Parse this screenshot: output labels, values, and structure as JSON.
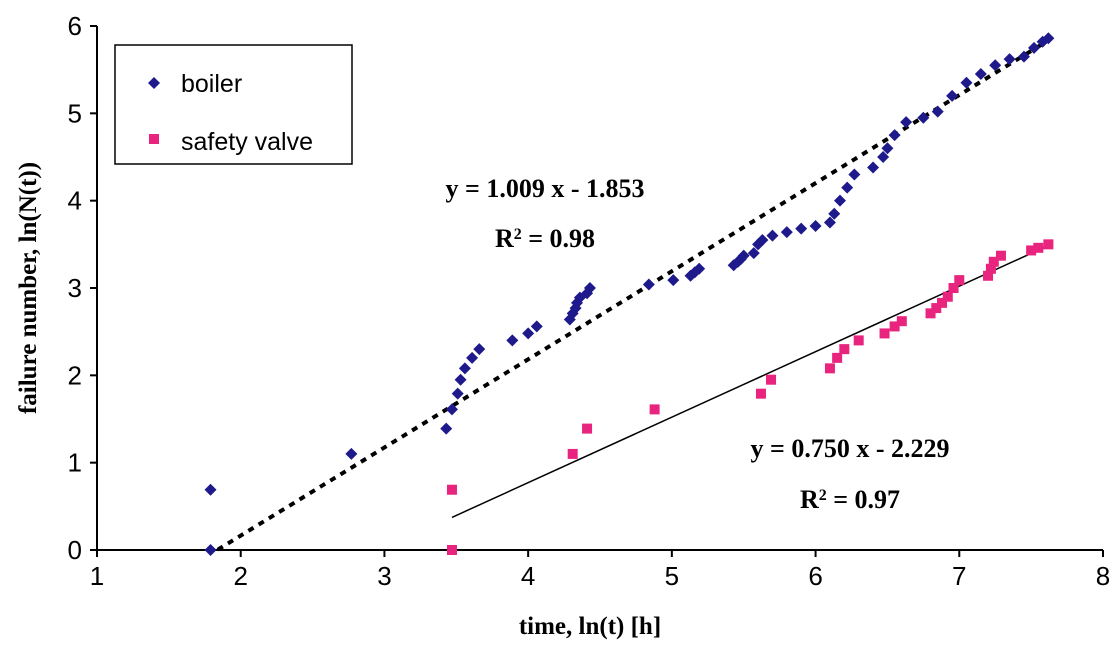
{
  "chart_data": {
    "type": "scatter",
    "xlabel": "time, ln(t) [h]",
    "ylabel": "failure number, ln(N(t))",
    "xlim": [
      1,
      8
    ],
    "ylim": [
      0,
      6
    ],
    "x_ticks": [
      "1",
      "2",
      "3",
      "4",
      "5",
      "6",
      "7",
      "8"
    ],
    "y_ticks": [
      "0",
      "1",
      "2",
      "3",
      "4",
      "5",
      "6"
    ],
    "grid": false,
    "legend_position": "top-left",
    "series": [
      {
        "name": "boiler",
        "marker": "diamond",
        "color": "#1f1a8c",
        "points": [
          [
            1.79,
            0.0
          ],
          [
            1.79,
            0.69
          ],
          [
            2.77,
            1.1
          ],
          [
            3.43,
            1.39
          ],
          [
            3.47,
            1.61
          ],
          [
            3.51,
            1.79
          ],
          [
            3.53,
            1.95
          ],
          [
            3.56,
            2.08
          ],
          [
            3.61,
            2.2
          ],
          [
            3.66,
            2.3
          ],
          [
            3.89,
            2.4
          ],
          [
            4.0,
            2.48
          ],
          [
            4.06,
            2.56
          ],
          [
            4.29,
            2.64
          ],
          [
            4.31,
            2.71
          ],
          [
            4.33,
            2.77
          ],
          [
            4.34,
            2.83
          ],
          [
            4.36,
            2.89
          ],
          [
            4.41,
            2.94
          ],
          [
            4.43,
            3.0
          ],
          [
            4.84,
            3.04
          ],
          [
            5.01,
            3.09
          ],
          [
            5.13,
            3.14
          ],
          [
            5.16,
            3.18
          ],
          [
            5.19,
            3.22
          ],
          [
            5.43,
            3.26
          ],
          [
            5.46,
            3.3
          ],
          [
            5.48,
            3.33
          ],
          [
            5.5,
            3.37
          ],
          [
            5.57,
            3.4
          ],
          [
            5.6,
            3.5
          ],
          [
            5.63,
            3.55
          ],
          [
            5.7,
            3.6
          ],
          [
            5.8,
            3.64
          ],
          [
            5.9,
            3.68
          ],
          [
            6.0,
            3.71
          ],
          [
            6.1,
            3.75
          ],
          [
            6.13,
            3.85
          ],
          [
            6.17,
            4.0
          ],
          [
            6.22,
            4.15
          ],
          [
            6.27,
            4.3
          ],
          [
            6.4,
            4.38
          ],
          [
            6.47,
            4.5
          ],
          [
            6.5,
            4.6
          ],
          [
            6.55,
            4.75
          ],
          [
            6.63,
            4.9
          ],
          [
            6.75,
            4.95
          ],
          [
            6.85,
            5.02
          ],
          [
            6.95,
            5.2
          ],
          [
            7.05,
            5.35
          ],
          [
            7.15,
            5.45
          ],
          [
            7.25,
            5.55
          ],
          [
            7.35,
            5.62
          ],
          [
            7.45,
            5.65
          ],
          [
            7.52,
            5.75
          ],
          [
            7.58,
            5.82
          ],
          [
            7.62,
            5.86
          ]
        ]
      },
      {
        "name": "safety valve",
        "marker": "square",
        "color": "#e8247f",
        "points": [
          [
            3.47,
            0.0
          ],
          [
            3.47,
            0.69
          ],
          [
            4.31,
            1.1
          ],
          [
            4.41,
            1.39
          ],
          [
            4.88,
            1.61
          ],
          [
            5.62,
            1.79
          ],
          [
            5.69,
            1.95
          ],
          [
            6.1,
            2.08
          ],
          [
            6.15,
            2.2
          ],
          [
            6.2,
            2.3
          ],
          [
            6.3,
            2.4
          ],
          [
            6.48,
            2.48
          ],
          [
            6.55,
            2.56
          ],
          [
            6.6,
            2.62
          ],
          [
            6.8,
            2.71
          ],
          [
            6.84,
            2.77
          ],
          [
            6.88,
            2.83
          ],
          [
            6.92,
            2.9
          ],
          [
            6.96,
            3.0
          ],
          [
            7.0,
            3.09
          ],
          [
            7.2,
            3.14
          ],
          [
            7.22,
            3.22
          ],
          [
            7.24,
            3.3
          ],
          [
            7.29,
            3.37
          ],
          [
            7.5,
            3.43
          ],
          [
            7.55,
            3.46
          ],
          [
            7.62,
            3.5
          ]
        ]
      }
    ],
    "trendlines": [
      {
        "series": "boiler",
        "style": "dotted",
        "slope": 1.009,
        "intercept": -1.853,
        "x_range": [
          1.84,
          7.62
        ],
        "equation": "y = 1.009 x - 1.853",
        "r2_prefix": "R",
        "r2_sup": "2",
        "r2_value": " = 0.98"
      },
      {
        "series": "safety valve",
        "style": "solid",
        "slope": 0.75,
        "intercept": -2.229,
        "x_range": [
          3.47,
          7.62
        ],
        "equation": "y = 0.750 x - 2.229",
        "r2_prefix": "R",
        "r2_sup": "2",
        "r2_value": " = 0.97"
      }
    ]
  }
}
